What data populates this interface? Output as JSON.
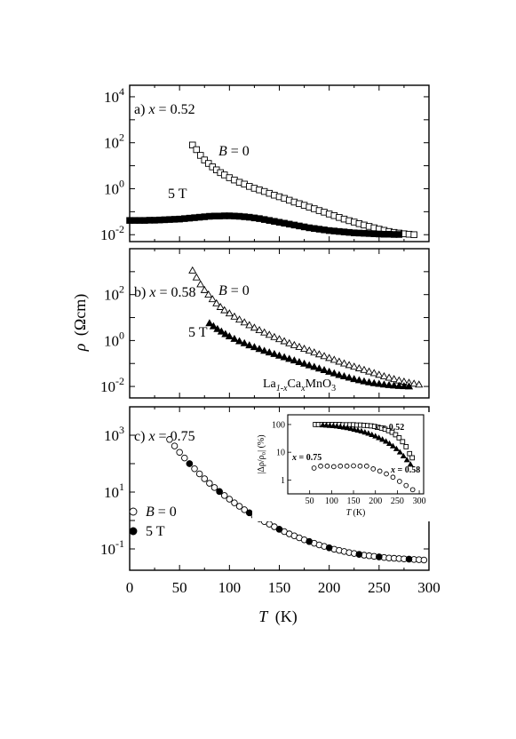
{
  "figure": {
    "y_axis_label_symbol": "ρ",
    "y_axis_label_unit": "(Ωcm)",
    "x_axis_label_symbol": "T",
    "x_axis_label_unit": "(K)",
    "x_ticks": [
      "0",
      "50",
      "100",
      "150",
      "200",
      "250",
      "300"
    ]
  },
  "chart_data": [
    {
      "type": "scatter",
      "panel_label": "a)",
      "panel_param": "x",
      "panel_value": "= 0.52",
      "x_range": [
        0,
        300
      ],
      "y_scale": "log",
      "y_range_log10": [
        -2.3,
        4.5
      ],
      "y_tick_base": "10",
      "y_tick_exponents": [
        "4",
        "2",
        "0",
        "-2"
      ],
      "series": [
        {
          "name_symbol": "B",
          "name_value": "= 0",
          "marker": "square-open",
          "x": [
            63,
            67,
            71,
            75,
            79,
            83,
            87,
            91,
            95,
            100,
            105,
            110,
            115,
            120,
            125,
            130,
            135,
            140,
            145,
            150,
            155,
            160,
            165,
            170,
            175,
            180,
            185,
            190,
            195,
            200,
            205,
            210,
            215,
            220,
            225,
            230,
            235,
            240,
            245,
            250,
            255,
            260,
            265,
            270,
            275,
            280,
            285
          ],
          "y_log10": [
            1.9,
            1.7,
            1.45,
            1.25,
            1.1,
            0.95,
            0.82,
            0.7,
            0.6,
            0.48,
            0.38,
            0.28,
            0.2,
            0.1,
            0.02,
            -0.05,
            -0.12,
            -0.2,
            -0.28,
            -0.35,
            -0.42,
            -0.5,
            -0.58,
            -0.65,
            -0.72,
            -0.8,
            -0.87,
            -0.95,
            -1.02,
            -1.1,
            -1.17,
            -1.25,
            -1.32,
            -1.39,
            -1.45,
            -1.52,
            -1.58,
            -1.64,
            -1.7,
            -1.76,
            -1.81,
            -1.86,
            -1.9,
            -1.93,
            -1.96,
            -1.98,
            -2.0
          ]
        },
        {
          "name_symbol": "",
          "name_value": "5 T",
          "marker": "square-filled",
          "x": [
            0,
            5,
            10,
            15,
            20,
            25,
            30,
            35,
            40,
            45,
            50,
            55,
            60,
            65,
            70,
            75,
            80,
            85,
            90,
            95,
            100,
            105,
            110,
            115,
            120,
            125,
            130,
            135,
            140,
            145,
            150,
            155,
            160,
            165,
            170,
            175,
            180,
            185,
            190,
            195,
            200,
            205,
            210,
            215,
            220,
            225,
            230,
            235,
            240,
            245,
            250,
            255,
            260,
            265,
            270
          ],
          "y_log10": [
            -1.38,
            -1.38,
            -1.38,
            -1.38,
            -1.37,
            -1.37,
            -1.36,
            -1.35,
            -1.34,
            -1.33,
            -1.32,
            -1.3,
            -1.28,
            -1.26,
            -1.24,
            -1.22,
            -1.2,
            -1.19,
            -1.19,
            -1.18,
            -1.18,
            -1.19,
            -1.2,
            -1.22,
            -1.24,
            -1.27,
            -1.3,
            -1.34,
            -1.38,
            -1.42,
            -1.46,
            -1.5,
            -1.54,
            -1.58,
            -1.62,
            -1.66,
            -1.7,
            -1.73,
            -1.76,
            -1.79,
            -1.82,
            -1.84,
            -1.86,
            -1.88,
            -1.9,
            -1.92,
            -1.93,
            -1.94,
            -1.95,
            -1.96,
            -1.97,
            -1.98,
            -1.98,
            -1.99,
            -1.99
          ]
        }
      ]
    },
    {
      "type": "scatter",
      "panel_label": "b)",
      "panel_param": "x",
      "panel_value": "= 0.58",
      "x_range": [
        0,
        300
      ],
      "y_scale": "log",
      "y_range_log10": [
        -2.5,
        4.0
      ],
      "y_tick_base": "10",
      "y_tick_exponents": [
        "2",
        "0",
        "-2"
      ],
      "annotation_base": "La",
      "annotation_sub1": "1-x",
      "annotation_mid": "Ca",
      "annotation_sub2": "x",
      "annotation_end": "MnO",
      "annotation_sub3": "3",
      "series": [
        {
          "name_symbol": "B",
          "name_value": "= 0",
          "marker": "triangle-open",
          "x": [
            63,
            67,
            71,
            75,
            79,
            83,
            87,
            91,
            95,
            100,
            105,
            110,
            115,
            120,
            125,
            130,
            135,
            140,
            145,
            150,
            155,
            160,
            165,
            170,
            175,
            180,
            185,
            190,
            195,
            200,
            205,
            210,
            215,
            220,
            225,
            230,
            235,
            240,
            245,
            250,
            255,
            260,
            265,
            270,
            275,
            280,
            285,
            290
          ],
          "y_log10": [
            3.05,
            2.75,
            2.45,
            2.2,
            2.0,
            1.8,
            1.62,
            1.46,
            1.32,
            1.18,
            1.04,
            0.91,
            0.79,
            0.67,
            0.56,
            0.45,
            0.35,
            0.25,
            0.15,
            0.06,
            -0.03,
            -0.12,
            -0.2,
            -0.28,
            -0.36,
            -0.44,
            -0.52,
            -0.6,
            -0.68,
            -0.76,
            -0.84,
            -0.92,
            -1.0,
            -1.07,
            -1.14,
            -1.21,
            -1.28,
            -1.35,
            -1.42,
            -1.49,
            -1.56,
            -1.62,
            -1.68,
            -1.74,
            -1.79,
            -1.84,
            -1.88,
            -1.92
          ]
        },
        {
          "name_symbol": "",
          "name_value": "5 T",
          "marker": "triangle-filled",
          "x": [
            80,
            84,
            88,
            92,
            96,
            100,
            105,
            110,
            115,
            120,
            125,
            130,
            135,
            140,
            145,
            150,
            155,
            160,
            165,
            170,
            175,
            180,
            185,
            190,
            195,
            200,
            205,
            210,
            215,
            220,
            225,
            230,
            235,
            240,
            245,
            250,
            255,
            260,
            265,
            270,
            275,
            280
          ],
          "y_log10": [
            0.75,
            0.62,
            0.5,
            0.39,
            0.28,
            0.18,
            0.07,
            -0.03,
            -0.12,
            -0.21,
            -0.29,
            -0.37,
            -0.45,
            -0.52,
            -0.59,
            -0.66,
            -0.73,
            -0.8,
            -0.87,
            -0.94,
            -1.01,
            -1.08,
            -1.15,
            -1.22,
            -1.29,
            -1.36,
            -1.43,
            -1.5,
            -1.56,
            -1.62,
            -1.68,
            -1.73,
            -1.78,
            -1.82,
            -1.86,
            -1.89,
            -1.92,
            -1.94,
            -1.96,
            -1.98,
            -1.99,
            -2.0
          ]
        }
      ]
    },
    {
      "type": "scatter",
      "panel_label": "c)",
      "panel_param": "x",
      "panel_value": "= 0.75",
      "x_range": [
        0,
        300
      ],
      "y_scale": "log",
      "y_range_log10": [
        -1.75,
        4.0
      ],
      "y_tick_base": "10",
      "y_tick_exponents": [
        "3",
        "1",
        "-1"
      ],
      "series": [
        {
          "name_symbol": "B",
          "name_value": "= 0",
          "marker": "circle-open",
          "x": [
            40,
            45,
            50,
            55,
            60,
            65,
            70,
            75,
            80,
            85,
            90,
            95,
            100,
            105,
            110,
            115,
            120,
            125,
            130,
            135,
            140,
            145,
            150,
            155,
            160,
            165,
            170,
            175,
            180,
            185,
            190,
            195,
            200,
            205,
            210,
            215,
            220,
            225,
            230,
            235,
            240,
            245,
            250,
            255,
            260,
            265,
            270,
            275,
            280,
            285,
            290,
            295
          ],
          "y_log10": [
            2.85,
            2.62,
            2.4,
            2.2,
            2.0,
            1.82,
            1.64,
            1.47,
            1.31,
            1.16,
            1.02,
            0.88,
            0.75,
            0.62,
            0.5,
            0.38,
            0.27,
            0.16,
            0.06,
            -0.04,
            -0.13,
            -0.22,
            -0.31,
            -0.39,
            -0.47,
            -0.54,
            -0.61,
            -0.68,
            -0.74,
            -0.8,
            -0.86,
            -0.91,
            -0.96,
            -1.01,
            -1.05,
            -1.09,
            -1.13,
            -1.16,
            -1.19,
            -1.22,
            -1.24,
            -1.26,
            -1.28,
            -1.3,
            -1.32,
            -1.33,
            -1.34,
            -1.35,
            -1.36,
            -1.37,
            -1.38,
            -1.39
          ]
        },
        {
          "name_symbol": "",
          "name_value": "5 T",
          "marker": "circle-filled",
          "x": [
            60,
            90,
            120,
            150,
            180,
            200,
            230,
            250,
            280
          ],
          "y_log10": [
            2.0,
            1.02,
            0.27,
            -0.31,
            -0.74,
            -0.96,
            -1.19,
            -1.28,
            -1.36
          ]
        }
      ],
      "inset": {
        "type": "scatter",
        "y_scale": "log",
        "x_range": [
          0,
          310
        ],
        "y_range_log10": [
          -0.5,
          2.35
        ],
        "x_ticks": [
          "50",
          "100",
          "150",
          "200",
          "250",
          "300"
        ],
        "y_ticks": [
          "100",
          "10",
          "1"
        ],
        "xlabel_symbol": "T",
        "xlabel_unit": "(K)",
        "ylabel": "|Δρ/ρ₀| (%)",
        "series": [
          {
            "name_param": "x",
            "name_value": "= 0.52",
            "marker": "square-open",
            "x": [
              63,
              70,
              78,
              86,
              94,
              102,
              110,
              118,
              126,
              134,
              142,
              150,
              158,
              166,
              174,
              182,
              190,
              198,
              206,
              214,
              222,
              230,
              238,
              246,
              254,
              262,
              270,
              278,
              284
            ],
            "y_log10": [
              2.0,
              2.0,
              2.0,
              2.0,
              2.0,
              2.0,
              2.0,
              2.0,
              1.99,
              1.99,
              1.99,
              1.99,
              1.98,
              1.98,
              1.97,
              1.96,
              1.95,
              1.93,
              1.9,
              1.87,
              1.83,
              1.78,
              1.72,
              1.63,
              1.52,
              1.38,
              1.2,
              0.95,
              0.8
            ]
          },
          {
            "name_param": "x",
            "name_value": "= 0.58",
            "marker": "triangle-filled",
            "x": [
              80,
              88,
              96,
              104,
              112,
              120,
              128,
              136,
              144,
              152,
              160,
              168,
              176,
              184,
              192,
              200,
              208,
              216,
              224,
              232,
              240,
              248,
              256,
              264,
              272,
              280
            ],
            "y_log10": [
              1.98,
              1.97,
              1.96,
              1.95,
              1.94,
              1.92,
              1.9,
              1.88,
              1.85,
              1.82,
              1.79,
              1.76,
              1.72,
              1.68,
              1.63,
              1.58,
              1.52,
              1.46,
              1.39,
              1.31,
              1.22,
              1.12,
              1.0,
              0.86,
              0.72,
              0.56
            ]
          },
          {
            "name_param": "x",
            "name_value": "= 0.75",
            "marker": "circle-open",
            "x": [
              60,
              75,
              90,
              105,
              120,
              135,
              150,
              165,
              180,
              195,
              210,
              225,
              240,
              255,
              270,
              285
            ],
            "y_log10": [
              0.43,
              0.5,
              0.5,
              0.48,
              0.5,
              0.5,
              0.51,
              0.5,
              0.5,
              0.4,
              0.32,
              0.22,
              0.1,
              -0.05,
              -0.2,
              -0.35
            ]
          }
        ]
      }
    }
  ]
}
